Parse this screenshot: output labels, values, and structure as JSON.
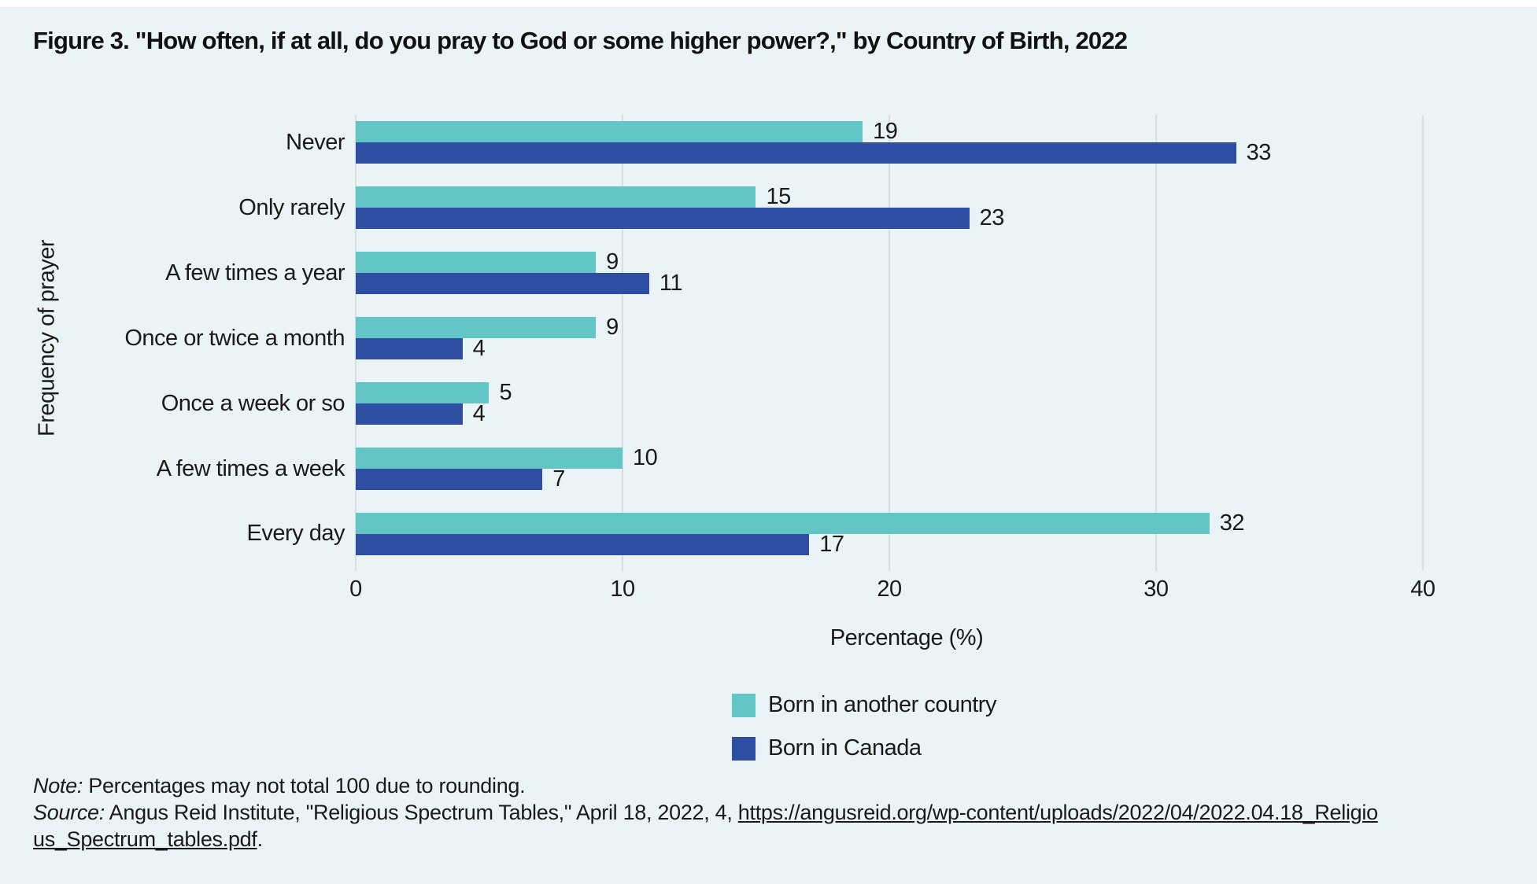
{
  "page": {
    "background": "#EAF3F5"
  },
  "title": "Figure 3. \"How often, if at all, do you pray to God or some higher power?,\" by Country of Birth, 2022",
  "chart_data": {
    "type": "bar",
    "orientation": "horizontal",
    "title": "Figure 3. \"How often, if at all, do you pray to God or some higher power?,\" by Country of Birth, 2022",
    "categories": [
      "Never",
      "Only rarely",
      "A few times a year",
      "Once or twice a month",
      "Once a week or so",
      "A few times a week",
      "Every day"
    ],
    "series": [
      {
        "name": "Born in another country",
        "color": "#62C6C7",
        "values": [
          19,
          15,
          9,
          9,
          5,
          10,
          32
        ]
      },
      {
        "name": "Born in Canada",
        "color": "#2D4EA2",
        "values": [
          33,
          23,
          11,
          4,
          4,
          7,
          17
        ]
      }
    ],
    "xlabel": "Percentage (%)",
    "ylabel": "Frequency of prayer",
    "xlim": [
      0,
      41.3
    ],
    "xticks": [
      0,
      10,
      20,
      30,
      40
    ],
    "grid": "vertical",
    "gridline_color": "#D8DEDD",
    "value_labels": true,
    "legend_position": "bottom"
  },
  "footer": {
    "note_label": "Note:",
    "note_text": " Percentages may not total 100 due to rounding.",
    "source_label": "Source:",
    "source_text": " Angus Reid Institute, \"Religious Spectrum Tables,\" April 18, 2022, 4, ",
    "link_line1": "https://angusreid.org/wp-content/uploads/2022/04/2022.04.18_Religio",
    "link_line2": "us_Spectrum_tables.pdf",
    "after_link": "."
  }
}
